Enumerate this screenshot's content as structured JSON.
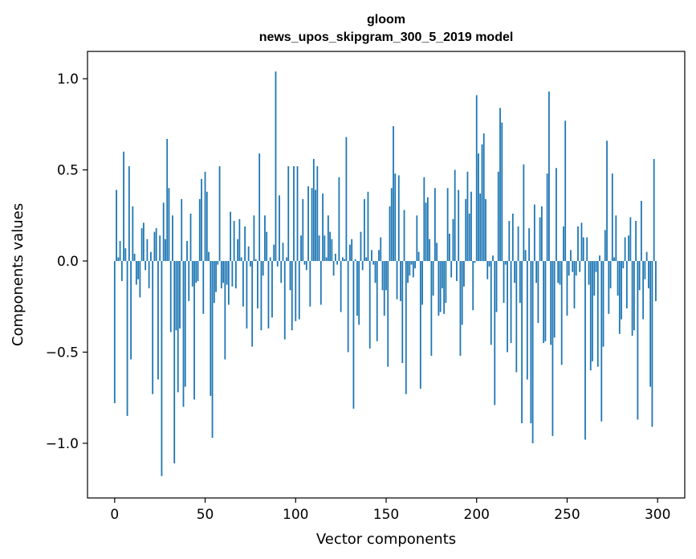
{
  "chart_data": {
    "type": "bar",
    "title": [
      "gloom",
      "news_upos_skipgram_300_5_2019 model"
    ],
    "xlabel": "Vector components",
    "ylabel": "Components values",
    "xlim": [
      -15,
      315
    ],
    "ylim": [
      -1.3,
      1.15
    ],
    "xticks": [
      0,
      50,
      100,
      150,
      200,
      250,
      300
    ],
    "xtick_labels": [
      "0",
      "50",
      "100",
      "150",
      "200",
      "250",
      "300"
    ],
    "yticks": [
      -1.0,
      -0.5,
      0.0,
      0.5,
      1.0
    ],
    "ytick_labels": [
      "−1.0",
      "−0.5",
      "0.0",
      "0.5",
      "1.0"
    ],
    "grid": false,
    "bar_color": "#1f77b4",
    "values": [
      -0.78,
      0.39,
      0.02,
      0.11,
      -0.11,
      0.6,
      0.07,
      -0.85,
      0.52,
      -0.54,
      0.3,
      0.04,
      -0.13,
      -0.1,
      -0.2,
      0.18,
      0.21,
      -0.05,
      0.12,
      -0.15,
      0.05,
      -0.73,
      0.16,
      0.18,
      -0.65,
      0.14,
      -1.18,
      0.32,
      0.12,
      0.67,
      0.4,
      -0.39,
      0.25,
      -1.11,
      -0.38,
      -0.72,
      -0.37,
      0.34,
      -0.8,
      -0.69,
      0.11,
      -0.22,
      0.26,
      -0.14,
      -0.76,
      -0.12,
      -0.11,
      0.34,
      0.45,
      -0.29,
      0.49,
      0.38,
      0.05,
      -0.74,
      -0.97,
      -0.23,
      -0.17,
      -0.02,
      0.52,
      -0.15,
      -0.12,
      -0.54,
      -0.13,
      -0.24,
      0.27,
      -0.14,
      0.22,
      -0.15,
      0.12,
      0.23,
      0.02,
      -0.25,
      0.19,
      -0.37,
      0.08,
      -0.03,
      -0.47,
      0.25,
      0.01,
      -0.26,
      0.59,
      -0.38,
      -0.08,
      0.25,
      0.16,
      -0.37,
      0.02,
      -0.31,
      0.09,
      1.04,
      -0.03,
      0.36,
      -0.12,
      0.1,
      -0.43,
      0.02,
      0.52,
      -0.16,
      -0.38,
      0.52,
      -0.33,
      0.52,
      -0.32,
      0.14,
      0.34,
      -0.02,
      -0.05,
      0.41,
      -0.25,
      0.4,
      0.56,
      0.39,
      0.52,
      0.14,
      -0.24,
      0.37,
      0.14,
      0.02,
      0.25,
      0.16,
      0.12,
      -0.08,
      0.04,
      -0.02,
      0.46,
      -0.28,
      0.02,
      0.01,
      0.68,
      -0.5,
      0.09,
      0.12,
      -0.81,
      0.01,
      -0.3,
      -0.35,
      0.16,
      -0.05,
      0.34,
      0.02,
      0.38,
      -0.48,
      0.06,
      -0.02,
      -0.12,
      -0.44,
      0.06,
      0.13,
      -0.16,
      -0.3,
      -0.16,
      -0.58,
      0.3,
      0.4,
      0.74,
      0.48,
      -0.21,
      0.47,
      -0.22,
      -0.56,
      0.28,
      -0.73,
      -0.12,
      -0.08,
      -0.02,
      -0.09,
      -0.04,
      0.25,
      0.05,
      -0.7,
      -0.24,
      0.46,
      0.32,
      0.35,
      0.12,
      -0.52,
      -0.19,
      0.4,
      0.1,
      -0.3,
      -0.28,
      -0.15,
      -0.29,
      -0.23,
      0.4,
      0.15,
      -0.09,
      0.23,
      0.5,
      -0.11,
      0.39,
      -0.52,
      -0.35,
      -0.14,
      0.34,
      0.49,
      0.26,
      0.38,
      -0.27,
      -0.01,
      0.91,
      0.59,
      0.37,
      0.64,
      0.7,
      0.34,
      -0.1,
      -0.03,
      -0.46,
      0.03,
      -0.79,
      -0.28,
      0.49,
      0.84,
      0.76,
      -0.23,
      -0.02,
      -0.5,
      0.22,
      -0.45,
      0.26,
      -0.12,
      -0.61,
      0.19,
      -0.23,
      -0.89,
      0.53,
      0.06,
      -0.65,
      0.18,
      -0.89,
      -1.0,
      0.31,
      -0.12,
      -0.34,
      0.24,
      0.3,
      -0.45,
      -0.44,
      0.48,
      0.93,
      -0.46,
      -0.96,
      -0.42,
      0.51,
      -0.12,
      -0.13,
      -0.57,
      0.19,
      0.77,
      -0.3,
      -0.08,
      0.06,
      -0.06,
      -0.26,
      -0.08,
      0.19,
      -0.06,
      0.21,
      0.13,
      -0.98,
      0.13,
      -0.13,
      -0.6,
      -0.55,
      -0.19,
      -0.06,
      -0.58,
      0.03,
      -0.88,
      -0.47,
      0.17,
      0.66,
      -0.29,
      -0.15,
      0.48,
      0.02,
      0.25,
      -0.19,
      -0.4,
      -0.32,
      -0.04,
      0.13,
      -0.26,
      0.14,
      0.24,
      -0.41,
      -0.38,
      0.22,
      -0.87,
      -0.16,
      0.33,
      -0.32,
      -0.1,
      0.05,
      -0.15,
      -0.69,
      -0.91,
      0.56,
      -0.22
    ]
  }
}
